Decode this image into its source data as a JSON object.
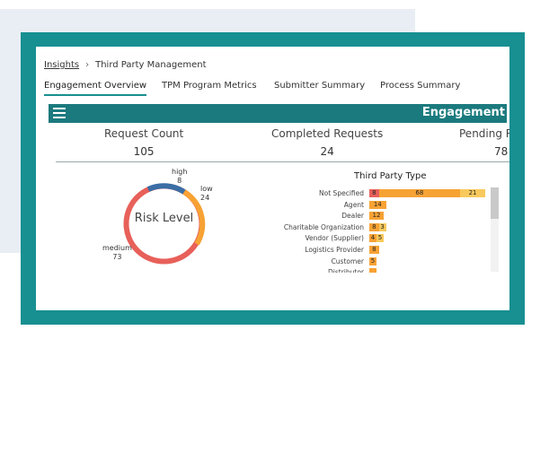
{
  "breadcrumb": {
    "parent": "Insights",
    "current": "Third Party Management"
  },
  "tabs": [
    "Engagement Overview",
    "TPM Program Metrics",
    "Submitter Summary",
    "Process Summary"
  ],
  "dashboard": {
    "title": "Engagement"
  },
  "kpis": [
    {
      "label": "Request Count",
      "value": "105"
    },
    {
      "label": "Completed Requests",
      "value": "24"
    },
    {
      "label": "Pending R",
      "value": "78"
    }
  ],
  "risk_chart": {
    "title": "Risk Level",
    "segments": [
      {
        "name": "high",
        "value": "8",
        "color": "#3a6ea5"
      },
      {
        "name": "low",
        "value": "24",
        "color": "#f7a234"
      },
      {
        "name": "medium",
        "value": "73",
        "color": "#e8605a"
      }
    ]
  },
  "chart_data": {
    "type": "bar",
    "title": "Third Party Type",
    "categories": [
      "Not Specified",
      "Agent",
      "Dealer",
      "Charitable Organization",
      "Vendor (Supplier)",
      "Logistics Provider",
      "Customer",
      "Distributor"
    ],
    "series": [
      {
        "color": "#e8605a",
        "values": [
          8,
          0,
          0,
          0,
          0,
          0,
          0,
          0
        ],
        "labels": [
          "8",
          "",
          "",
          "",
          "",
          "",
          "",
          ""
        ]
      },
      {
        "color": "#f7a234",
        "values": [
          68,
          14,
          12,
          8,
          4,
          8,
          5,
          5
        ],
        "labels": [
          "68",
          "14",
          "12",
          "8",
          "4",
          "8",
          "5",
          ""
        ]
      },
      {
        "color": "#f8c95c",
        "values": [
          21,
          0,
          0,
          3,
          5,
          0,
          0,
          0
        ],
        "labels": [
          "21",
          "",
          "",
          "3",
          "5",
          "",
          "",
          ""
        ]
      }
    ]
  }
}
